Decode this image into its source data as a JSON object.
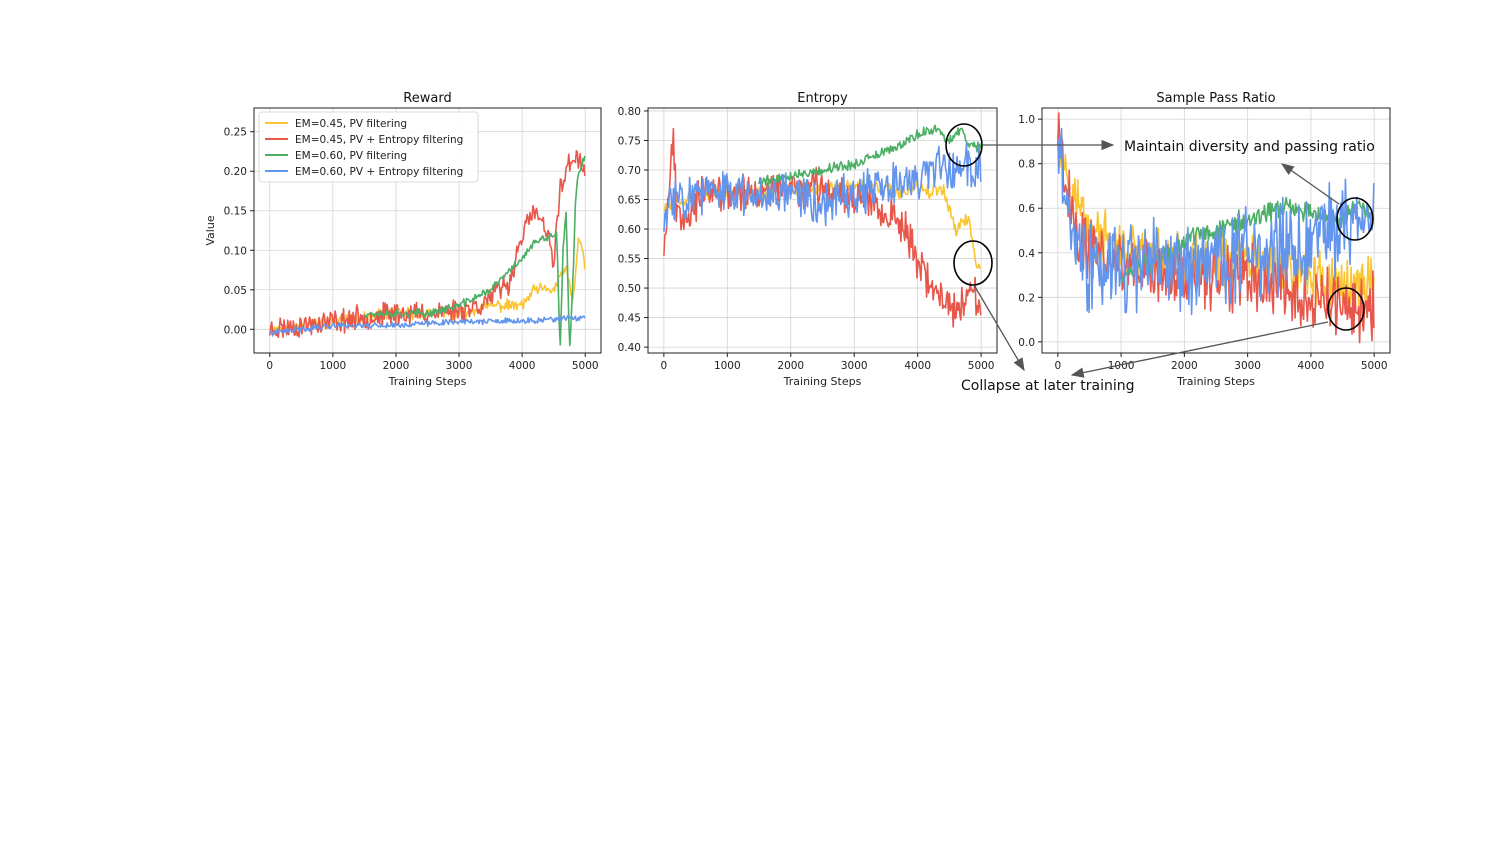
{
  "colors": {
    "yellow": "#fbc531",
    "red": "#e8574b",
    "green": "#4caf65",
    "blue": "#6495ed",
    "grid": "#d3d3d3",
    "annotation": "#555555"
  },
  "legend": {
    "placement": "top-left of first panel",
    "entries": [
      {
        "label": "EM=0.45, PV filtering",
        "color": "yellow"
      },
      {
        "label": "EM=0.45, PV + Entropy filtering",
        "color": "red"
      },
      {
        "label": "EM=0.60, PV filtering",
        "color": "green"
      },
      {
        "label": "EM=0.60, PV + Entropy filtering",
        "color": "blue"
      }
    ]
  },
  "annotations": {
    "maintain": "Maintain diversity and passing ratio",
    "collapse": "Collapse at later training"
  },
  "chart_data": [
    {
      "type": "line",
      "title": "Reward",
      "xlabel": "Training Steps",
      "ylabel": "Value",
      "xlim": [
        -250,
        5250
      ],
      "ylim": [
        -0.03,
        0.28
      ],
      "xticks": [
        0,
        1000,
        2000,
        3000,
        4000,
        5000
      ],
      "yticks": [
        0.0,
        0.05,
        0.1,
        0.15,
        0.2,
        0.25
      ],
      "ytick_labels": [
        "0.00",
        "0.05",
        "0.10",
        "0.15",
        "0.20",
        "0.25"
      ],
      "grid": true,
      "series": [
        {
          "name": "EM=0.45, PV filtering",
          "color": "yellow",
          "noise": 0.006,
          "seed": 11,
          "points": [
            [
              0,
              0.0
            ],
            [
              1000,
              0.01
            ],
            [
              1500,
              0.015
            ],
            [
              2000,
              0.02
            ],
            [
              2500,
              0.02
            ],
            [
              3000,
              0.02
            ],
            [
              3500,
              0.03
            ],
            [
              4000,
              0.03
            ],
            [
              4200,
              0.05
            ],
            [
              4500,
              0.05
            ],
            [
              4700,
              0.08
            ],
            [
              4800,
              0.03
            ],
            [
              4900,
              0.12
            ],
            [
              5000,
              0.08
            ]
          ]
        },
        {
          "name": "EM=0.45, PV + Entropy filtering",
          "color": "red",
          "noise": 0.012,
          "seed": 23,
          "points": [
            [
              0,
              0.0
            ],
            [
              500,
              0.005
            ],
            [
              1000,
              0.01
            ],
            [
              1500,
              0.015
            ],
            [
              2000,
              0.02
            ],
            [
              2500,
              0.02
            ],
            [
              3000,
              0.025
            ],
            [
              3300,
              0.03
            ],
            [
              3500,
              0.04
            ],
            [
              3800,
              0.06
            ],
            [
              4000,
              0.12
            ],
            [
              4200,
              0.15
            ],
            [
              4400,
              0.12
            ],
            [
              4500,
              0.08
            ],
            [
              4600,
              0.18
            ],
            [
              4700,
              0.2
            ],
            [
              4800,
              0.22
            ],
            [
              4900,
              0.21
            ],
            [
              5000,
              0.2
            ]
          ]
        },
        {
          "name": "EM=0.60, PV filtering",
          "color": "green",
          "noise": 0.004,
          "seed": 37,
          "points": [
            [
              1500,
              0.02
            ],
            [
              2000,
              0.02
            ],
            [
              2500,
              0.02
            ],
            [
              3000,
              0.03
            ],
            [
              3500,
              0.05
            ],
            [
              4000,
              0.09
            ],
            [
              4200,
              0.11
            ],
            [
              4400,
              0.115
            ],
            [
              4500,
              0.12
            ],
            [
              4550,
              0.12
            ],
            [
              4600,
              -0.03
            ],
            [
              4650,
              0.1
            ],
            [
              4700,
              0.15
            ],
            [
              4750,
              -0.03
            ],
            [
              4800,
              0.05
            ],
            [
              4850,
              0.17
            ],
            [
              4900,
              0.2
            ],
            [
              5000,
              0.22
            ]
          ]
        },
        {
          "name": "EM=0.60, PV + Entropy filtering",
          "color": "blue",
          "noise": 0.003,
          "seed": 41,
          "points": [
            [
              0,
              -0.005
            ],
            [
              1000,
              0.005
            ],
            [
              2000,
              0.005
            ],
            [
              3000,
              0.01
            ],
            [
              4000,
              0.01
            ],
            [
              5000,
              0.015
            ]
          ]
        }
      ]
    },
    {
      "type": "line",
      "title": "Entropy",
      "xlabel": "Training Steps",
      "ylabel": "",
      "xlim": [
        -250,
        5250
      ],
      "ylim": [
        0.39,
        0.805
      ],
      "xticks": [
        0,
        1000,
        2000,
        3000,
        4000,
        5000
      ],
      "yticks": [
        0.4,
        0.45,
        0.5,
        0.55,
        0.6,
        0.65,
        0.7,
        0.75,
        0.8
      ],
      "ytick_labels": [
        "0.40",
        "0.45",
        "0.50",
        "0.55",
        "0.60",
        "0.65",
        "0.70",
        "0.75",
        "0.80"
      ],
      "grid": true,
      "series": [
        {
          "name": "EM=0.45, PV filtering",
          "color": "yellow",
          "noise": 0.01,
          "seed": 53,
          "points": [
            [
              0,
              0.64
            ],
            [
              500,
              0.66
            ],
            [
              1000,
              0.66
            ],
            [
              1500,
              0.66
            ],
            [
              2000,
              0.67
            ],
            [
              2500,
              0.67
            ],
            [
              3000,
              0.67
            ],
            [
              3500,
              0.67
            ],
            [
              3800,
              0.66
            ],
            [
              4000,
              0.68
            ],
            [
              4200,
              0.66
            ],
            [
              4400,
              0.67
            ],
            [
              4600,
              0.6
            ],
            [
              4800,
              0.62
            ],
            [
              4900,
              0.55
            ],
            [
              5000,
              0.53
            ]
          ]
        },
        {
          "name": "EM=0.45, PV + Entropy filtering",
          "color": "red",
          "noise": 0.025,
          "seed": 67,
          "points": [
            [
              0,
              0.57
            ],
            [
              100,
              0.7
            ],
            [
              150,
              0.76
            ],
            [
              200,
              0.63
            ],
            [
              400,
              0.63
            ],
            [
              600,
              0.66
            ],
            [
              1000,
              0.66
            ],
            [
              1500,
              0.66
            ],
            [
              2000,
              0.67
            ],
            [
              2500,
              0.67
            ],
            [
              3000,
              0.66
            ],
            [
              3400,
              0.64
            ],
            [
              3600,
              0.62
            ],
            [
              3800,
              0.6
            ],
            [
              4000,
              0.55
            ],
            [
              4200,
              0.5
            ],
            [
              4400,
              0.48
            ],
            [
              4600,
              0.46
            ],
            [
              4800,
              0.5
            ],
            [
              5000,
              0.47
            ]
          ]
        },
        {
          "name": "EM=0.60, PV filtering",
          "color": "green",
          "noise": 0.007,
          "seed": 79,
          "points": [
            [
              1500,
              0.68
            ],
            [
              2000,
              0.69
            ],
            [
              2500,
              0.7
            ],
            [
              3000,
              0.71
            ],
            [
              3500,
              0.73
            ],
            [
              4000,
              0.76
            ],
            [
              4300,
              0.77
            ],
            [
              4500,
              0.75
            ],
            [
              4700,
              0.77
            ],
            [
              4800,
              0.74
            ],
            [
              4900,
              0.74
            ],
            [
              5000,
              0.74
            ]
          ]
        },
        {
          "name": "EM=0.60, PV + Entropy filtering",
          "color": "blue",
          "noise": 0.03,
          "seed": 83,
          "points": [
            [
              0,
              0.6
            ],
            [
              100,
              0.65
            ],
            [
              300,
              0.66
            ],
            [
              1000,
              0.66
            ],
            [
              1500,
              0.66
            ],
            [
              2000,
              0.67
            ],
            [
              2500,
              0.64
            ],
            [
              3000,
              0.66
            ],
            [
              3500,
              0.67
            ],
            [
              4000,
              0.69
            ],
            [
              4500,
              0.7
            ],
            [
              5000,
              0.71
            ]
          ]
        }
      ]
    },
    {
      "type": "line",
      "title": "Sample Pass Ratio",
      "xlabel": "Training Steps",
      "ylabel": "",
      "xlim": [
        -250,
        5250
      ],
      "ylim": [
        -0.05,
        1.05
      ],
      "xticks": [
        0,
        1000,
        2000,
        3000,
        4000,
        5000
      ],
      "yticks": [
        0.0,
        0.2,
        0.4,
        0.6,
        0.8,
        1.0
      ],
      "ytick_labels": [
        "0.0",
        "0.2",
        "0.4",
        "0.6",
        "0.8",
        "1.0"
      ],
      "grid": true,
      "series": [
        {
          "name": "EM=0.45, PV filtering",
          "color": "yellow",
          "noise": 0.1,
          "seed": 97,
          "points": [
            [
              0,
              0.95
            ],
            [
              200,
              0.7
            ],
            [
              500,
              0.5
            ],
            [
              1000,
              0.4
            ],
            [
              2000,
              0.35
            ],
            [
              3000,
              0.35
            ],
            [
              4000,
              0.3
            ],
            [
              4500,
              0.25
            ],
            [
              5000,
              0.28
            ]
          ]
        },
        {
          "name": "EM=0.45, PV + Entropy filtering",
          "color": "red",
          "noise": 0.12,
          "seed": 101,
          "points": [
            [
              0,
              0.95
            ],
            [
              200,
              0.6
            ],
            [
              500,
              0.4
            ],
            [
              1000,
              0.35
            ],
            [
              2000,
              0.3
            ],
            [
              3000,
              0.3
            ],
            [
              4000,
              0.2
            ],
            [
              4500,
              0.15
            ],
            [
              5000,
              0.15
            ]
          ]
        },
        {
          "name": "EM=0.60, PV filtering",
          "color": "green",
          "noise": 0.04,
          "seed": 103,
          "points": [
            [
              1000,
              0.3
            ],
            [
              1500,
              0.35
            ],
            [
              2000,
              0.45
            ],
            [
              2500,
              0.5
            ],
            [
              3000,
              0.55
            ],
            [
              3500,
              0.6
            ],
            [
              4000,
              0.58
            ],
            [
              4500,
              0.55
            ],
            [
              4700,
              0.6
            ],
            [
              5000,
              0.58
            ]
          ]
        },
        {
          "name": "EM=0.60, PV + Entropy filtering",
          "color": "blue",
          "noise": 0.16,
          "seed": 107,
          "points": [
            [
              0,
              0.9
            ],
            [
              100,
              0.7
            ],
            [
              300,
              0.5
            ],
            [
              500,
              0.3
            ],
            [
              1000,
              0.35
            ],
            [
              2000,
              0.35
            ],
            [
              3000,
              0.38
            ],
            [
              4000,
              0.45
            ],
            [
              4500,
              0.5
            ],
            [
              5000,
              0.55
            ]
          ]
        }
      ]
    }
  ]
}
